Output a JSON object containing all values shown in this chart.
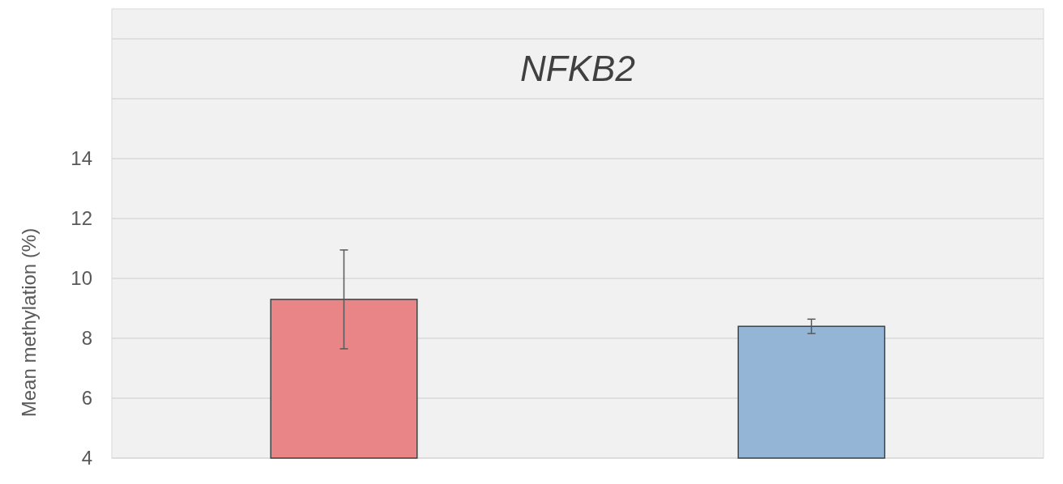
{
  "chart_data": {
    "type": "bar",
    "title": "NFKB2",
    "ylabel": "Mean methylation (%)",
    "categories": [
      null,
      null
    ],
    "values": [
      9.3,
      8.4
    ],
    "colors": [
      "#e98587",
      "#94b5d5"
    ],
    "errors": [
      1.65,
      0.24
    ],
    "ylim": [
      4,
      19
    ],
    "yticks": [
      4,
      6,
      8,
      10,
      12,
      14,
      {
        "value": 16,
        "label": null
      },
      {
        "value": 18,
        "label": null
      }
    ],
    "grid": "y"
  }
}
